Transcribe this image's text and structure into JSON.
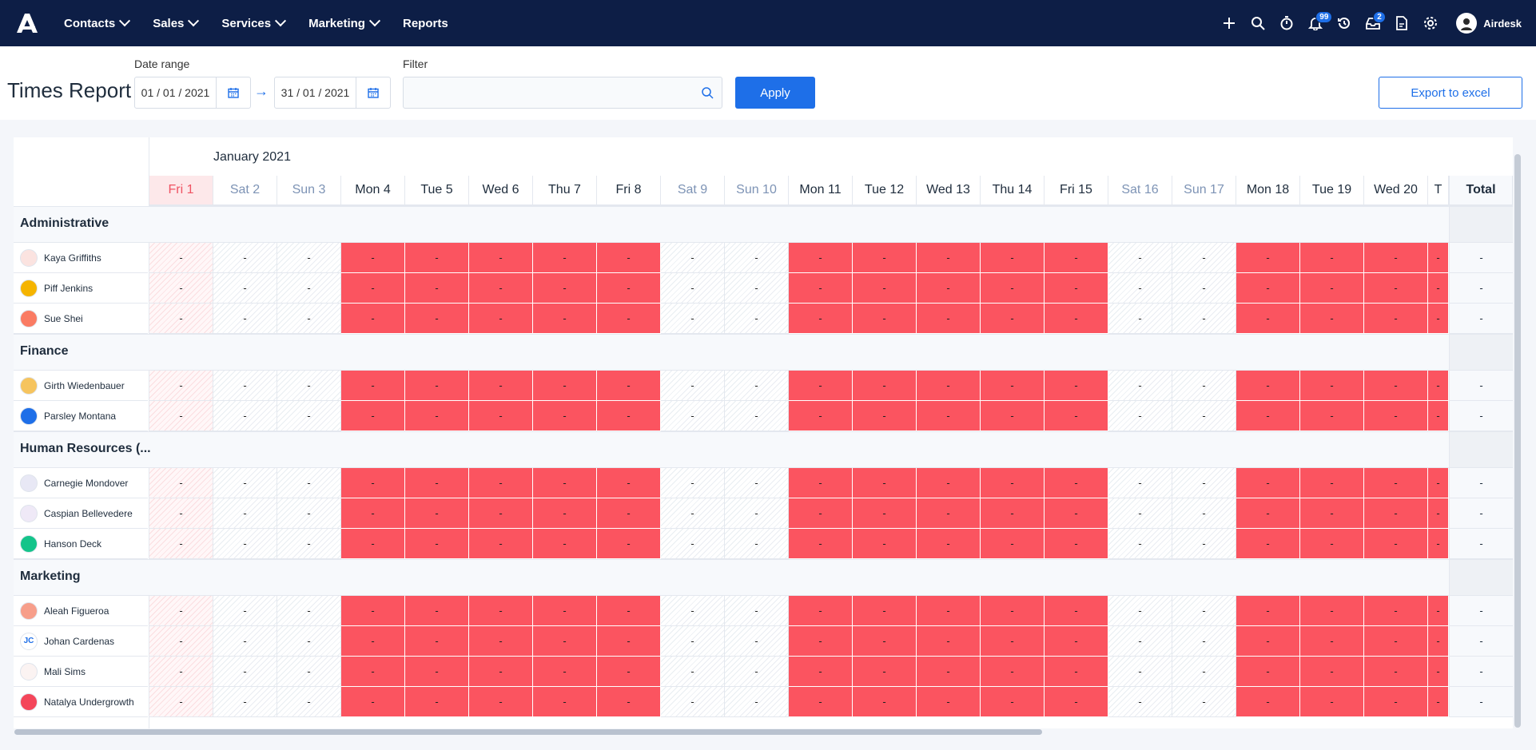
{
  "nav": {
    "items": [
      {
        "label": "Contacts",
        "dropdown": true
      },
      {
        "label": "Sales",
        "dropdown": true
      },
      {
        "label": "Services",
        "dropdown": true
      },
      {
        "label": "Marketing",
        "dropdown": true
      },
      {
        "label": "Reports",
        "dropdown": false
      }
    ],
    "notifications_badge": "99",
    "inbox_badge": "2",
    "user_name": "Airdesk"
  },
  "toolbar": {
    "title": "Times Report",
    "date_range_label": "Date range",
    "date_from": "01 / 01 / 2021",
    "date_to": "31 / 01 / 2021",
    "filter_label": "Filter",
    "filter_placeholder": "",
    "apply_label": "Apply",
    "export_label": "Export to excel"
  },
  "grid": {
    "month": "January 2021",
    "total_label": "Total",
    "days": [
      {
        "label": "Fri 1",
        "kind": "today"
      },
      {
        "label": "Sat 2",
        "kind": "weekend"
      },
      {
        "label": "Sun 3",
        "kind": "weekend"
      },
      {
        "label": "Mon 4",
        "kind": "work"
      },
      {
        "label": "Tue 5",
        "kind": "work"
      },
      {
        "label": "Wed 6",
        "kind": "work"
      },
      {
        "label": "Thu 7",
        "kind": "work"
      },
      {
        "label": "Fri 8",
        "kind": "work"
      },
      {
        "label": "Sat 9",
        "kind": "weekend"
      },
      {
        "label": "Sun 10",
        "kind": "weekend"
      },
      {
        "label": "Mon 11",
        "kind": "work"
      },
      {
        "label": "Tue 12",
        "kind": "work"
      },
      {
        "label": "Wed 13",
        "kind": "work"
      },
      {
        "label": "Thu 14",
        "kind": "work"
      },
      {
        "label": "Fri 15",
        "kind": "work"
      },
      {
        "label": "Sat 16",
        "kind": "weekend"
      },
      {
        "label": "Sun 17",
        "kind": "weekend"
      },
      {
        "label": "Mon 18",
        "kind": "work"
      },
      {
        "label": "Tue 19",
        "kind": "work"
      },
      {
        "label": "Wed 20",
        "kind": "work"
      },
      {
        "label": "T",
        "kind": "work"
      }
    ],
    "empty_value": "-",
    "groups": [
      {
        "name": "Administrative",
        "people": [
          {
            "name": "Kaya Griffiths",
            "avatar_color": "#fbe3e0",
            "initials": ""
          },
          {
            "name": "Piff Jenkins",
            "avatar_color": "#f5b400",
            "initials": ""
          },
          {
            "name": "Sue Shei",
            "avatar_color": "#fa7b63",
            "initials": ""
          }
        ]
      },
      {
        "name": "Finance",
        "people": [
          {
            "name": "Girth Wiedenbauer",
            "avatar_color": "#f6c45e",
            "initials": ""
          },
          {
            "name": "Parsley Montana",
            "avatar_color": "#1e6fe8",
            "initials": ""
          }
        ]
      },
      {
        "name": "Human Resources (...",
        "people": [
          {
            "name": "Carnegie Mondover",
            "avatar_color": "#e8e8f5",
            "initials": ""
          },
          {
            "name": "Caspian Bellevedere",
            "avatar_color": "#efe9f7",
            "initials": ""
          },
          {
            "name": "Hanson Deck",
            "avatar_color": "#14c48a",
            "initials": ""
          }
        ]
      },
      {
        "name": "Marketing",
        "people": [
          {
            "name": "Aleah Figueroa",
            "avatar_color": "#f79e8a",
            "initials": ""
          },
          {
            "name": "Johan Cardenas",
            "avatar_color": "#ffffff",
            "initials": "JC"
          },
          {
            "name": "Mali Sims",
            "avatar_color": "#fbf3f2",
            "initials": ""
          },
          {
            "name": "Natalya Undergrowth",
            "avatar_color": "#f4465a",
            "initials": ""
          }
        ]
      }
    ]
  }
}
